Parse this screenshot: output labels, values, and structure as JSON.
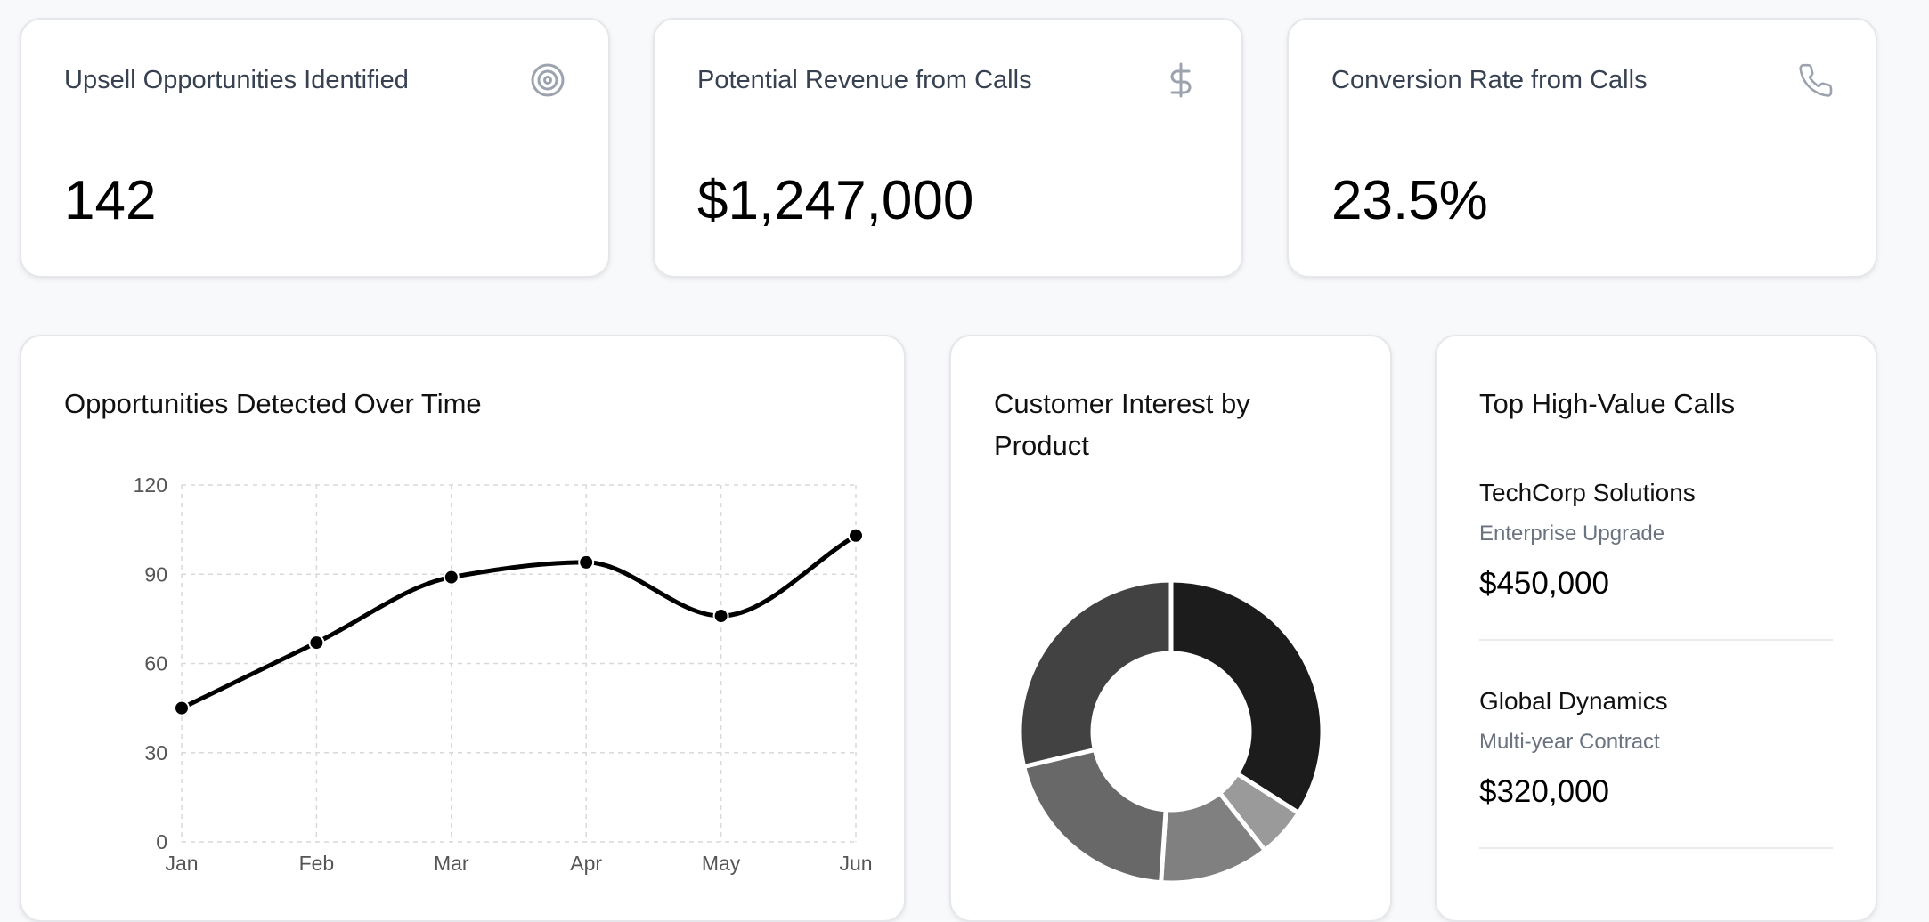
{
  "stats": [
    {
      "title": "Upsell Opportunities Identified",
      "value": "142",
      "icon": "target-icon"
    },
    {
      "title": "Potential Revenue from Calls",
      "value": "$1,247,000",
      "icon": "dollar-icon"
    },
    {
      "title": "Conversion Rate from Calls",
      "value": "23.5%",
      "icon": "phone-icon"
    }
  ],
  "line_panel": {
    "title": "Opportunities Detected Over Time"
  },
  "donut_panel": {
    "title": "Customer Interest by Product"
  },
  "calls_panel": {
    "title": "Top High-Value Calls",
    "calls": [
      {
        "name": "TechCorp Solutions",
        "detail": "Enterprise Upgrade",
        "amount": "$450,000"
      },
      {
        "name": "Global Dynamics",
        "detail": "Multi-year Contract",
        "amount": "$320,000"
      }
    ]
  },
  "colors": {
    "line": "#000000",
    "icon": "#9ca3af",
    "grid": "#d9d9d9"
  },
  "chart_data": [
    {
      "type": "line",
      "title": "Opportunities Detected Over Time",
      "categories": [
        "Jan",
        "Feb",
        "Mar",
        "Apr",
        "May",
        "Jun"
      ],
      "values": [
        45,
        67,
        89,
        94,
        76,
        103
      ],
      "ylim": [
        0,
        120
      ],
      "yticks": [
        0,
        30,
        60,
        90,
        120
      ],
      "grid": true
    },
    {
      "type": "pie",
      "title": "Customer Interest by Product",
      "values": [
        32,
        5,
        11,
        19,
        27
      ],
      "colors": [
        "#1c1c1c",
        "#9a9a9a",
        "#808080",
        "#686868",
        "#424242"
      ]
    }
  ]
}
